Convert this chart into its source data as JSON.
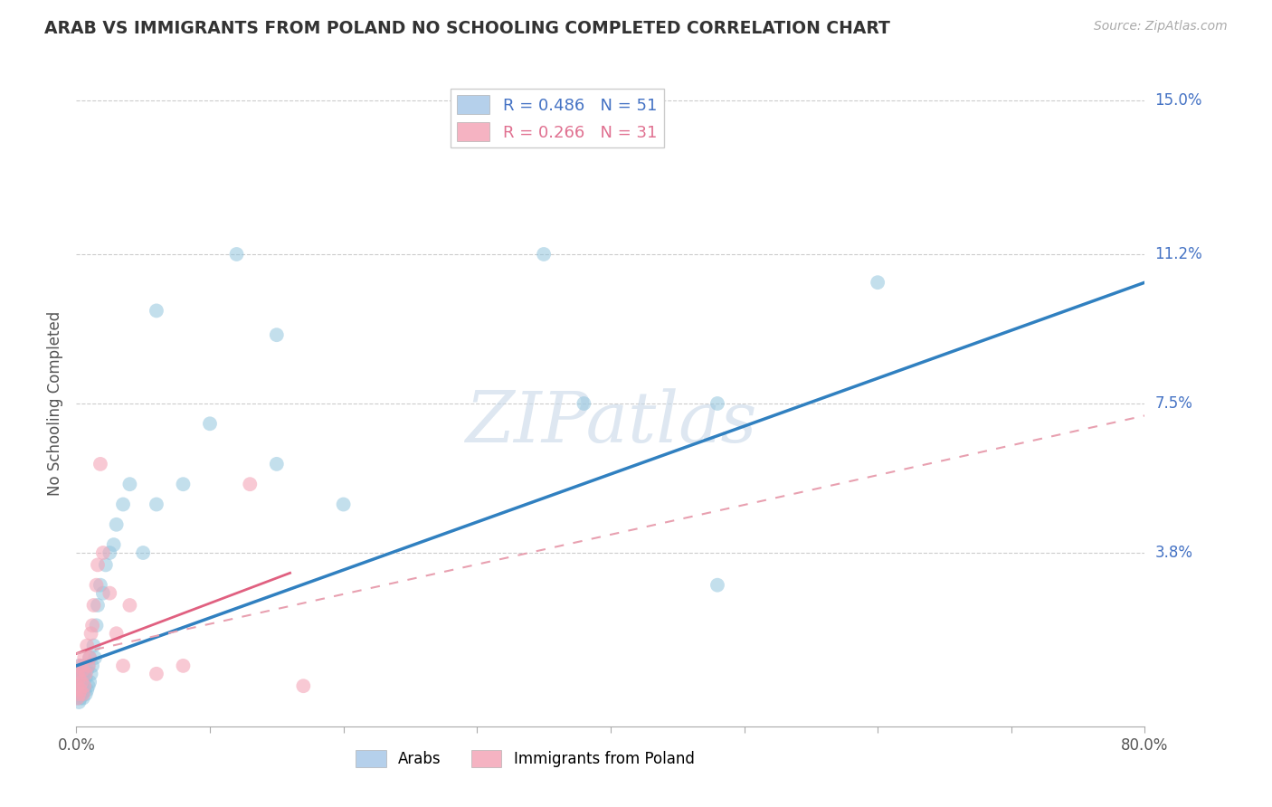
{
  "title": "ARAB VS IMMIGRANTS FROM POLAND NO SCHOOLING COMPLETED CORRELATION CHART",
  "source": "Source: ZipAtlas.com",
  "ylabel": "No Schooling Completed",
  "xlim": [
    0.0,
    0.8
  ],
  "ylim": [
    -0.005,
    0.155
  ],
  "xticks": [
    0.0,
    0.1,
    0.2,
    0.3,
    0.4,
    0.5,
    0.6,
    0.7,
    0.8
  ],
  "ytick_labels_right": [
    "15.0%",
    "11.2%",
    "7.5%",
    "3.8%"
  ],
  "ytick_vals_right": [
    0.15,
    0.112,
    0.075,
    0.038
  ],
  "watermark": "ZIPatlas",
  "series_arab": {
    "color": "#92c5de",
    "x": [
      0.001,
      0.001,
      0.001,
      0.002,
      0.002,
      0.002,
      0.002,
      0.003,
      0.003,
      0.003,
      0.004,
      0.004,
      0.005,
      0.005,
      0.005,
      0.006,
      0.006,
      0.007,
      0.007,
      0.008,
      0.008,
      0.009,
      0.009,
      0.01,
      0.01,
      0.011,
      0.012,
      0.013,
      0.014,
      0.015,
      0.016,
      0.018,
      0.02,
      0.022,
      0.025,
      0.028,
      0.03,
      0.035,
      0.04,
      0.05,
      0.06,
      0.08,
      0.12,
      0.15,
      0.2,
      0.38,
      0.48
    ],
    "y": [
      0.002,
      0.005,
      0.008,
      0.001,
      0.004,
      0.007,
      0.01,
      0.002,
      0.006,
      0.009,
      0.003,
      0.008,
      0.002,
      0.006,
      0.01,
      0.004,
      0.008,
      0.003,
      0.007,
      0.004,
      0.009,
      0.005,
      0.01,
      0.006,
      0.012,
      0.008,
      0.01,
      0.015,
      0.012,
      0.02,
      0.025,
      0.03,
      0.028,
      0.035,
      0.038,
      0.04,
      0.045,
      0.05,
      0.055,
      0.038,
      0.05,
      0.055,
      0.112,
      0.06,
      0.05,
      0.075,
      0.03
    ]
  },
  "series_arab_outliers": {
    "color": "#92c5de",
    "x": [
      0.06,
      0.1,
      0.15,
      0.35,
      0.48,
      0.6
    ],
    "y": [
      0.098,
      0.07,
      0.092,
      0.112,
      0.075,
      0.105
    ]
  },
  "series_poland": {
    "color": "#f4a6b8",
    "x": [
      0.001,
      0.001,
      0.001,
      0.002,
      0.002,
      0.003,
      0.003,
      0.004,
      0.005,
      0.005,
      0.006,
      0.006,
      0.007,
      0.008,
      0.009,
      0.01,
      0.011,
      0.012,
      0.013,
      0.015,
      0.016,
      0.018,
      0.02,
      0.025,
      0.03,
      0.035,
      0.04,
      0.06,
      0.08,
      0.13,
      0.17
    ],
    "y": [
      0.002,
      0.005,
      0.008,
      0.003,
      0.007,
      0.004,
      0.01,
      0.006,
      0.003,
      0.009,
      0.005,
      0.012,
      0.008,
      0.015,
      0.01,
      0.012,
      0.018,
      0.02,
      0.025,
      0.03,
      0.035,
      0.06,
      0.038,
      0.028,
      0.018,
      0.01,
      0.025,
      0.008,
      0.01,
      0.055,
      0.005
    ]
  },
  "trend_arab": {
    "color": "#3080c0",
    "linestyle": "solid",
    "x_start": 0.0,
    "y_start": 0.01,
    "x_end": 0.8,
    "y_end": 0.105
  },
  "trend_poland_solid": {
    "color": "#e06080",
    "linestyle": "solid",
    "x_start": 0.0,
    "y_start": 0.013,
    "x_end": 0.16,
    "y_end": 0.033
  },
  "trend_poland_dashed": {
    "color": "#e8a0b0",
    "linestyle": "dashed",
    "x_start": 0.0,
    "y_start": 0.013,
    "x_end": 0.8,
    "y_end": 0.072
  },
  "background_color": "#ffffff",
  "grid_color": "#cccccc",
  "title_color": "#333333",
  "axis_label_color": "#555555",
  "tick_label_color_right": "#4472c4",
  "legend_arab_color": "#4472c4",
  "legend_poland_color": "#e07090"
}
